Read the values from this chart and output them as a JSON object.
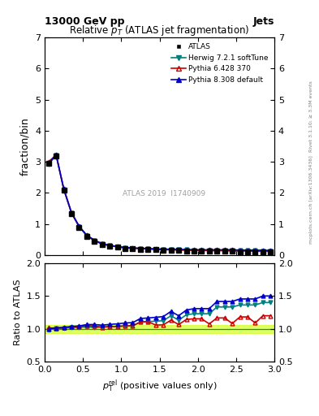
{
  "title": "Relative $p_T$ (ATLAS jet fragmentation)",
  "header_left": "13000 GeV pp",
  "header_right": "Jets",
  "ylabel_main": "fraction/bin",
  "ylabel_ratio": "Ratio to ATLAS",
  "watermark": "ATLAS 2019  I1740909",
  "right_label": "Rivet 3.1.10; ≥ 3.3M events",
  "right_label2": "mcplots.cern.ch [arXiv:1306.3436]",
  "x_data": [
    0.05,
    0.15,
    0.25,
    0.35,
    0.45,
    0.55,
    0.65,
    0.75,
    0.85,
    0.95,
    1.05,
    1.15,
    1.25,
    1.35,
    1.45,
    1.55,
    1.65,
    1.75,
    1.85,
    1.95,
    2.05,
    2.15,
    2.25,
    2.35,
    2.45,
    2.55,
    2.65,
    2.75,
    2.85,
    2.95
  ],
  "atlas_y": [
    2.95,
    3.18,
    2.08,
    1.32,
    0.89,
    0.6,
    0.45,
    0.35,
    0.29,
    0.26,
    0.22,
    0.21,
    0.19,
    0.18,
    0.17,
    0.16,
    0.15,
    0.15,
    0.14,
    0.13,
    0.13,
    0.13,
    0.12,
    0.12,
    0.12,
    0.11,
    0.11,
    0.11,
    0.1,
    0.1
  ],
  "herwig_y": [
    2.92,
    3.2,
    2.1,
    1.35,
    0.91,
    0.62,
    0.46,
    0.36,
    0.3,
    0.27,
    0.23,
    0.22,
    0.21,
    0.2,
    0.19,
    0.18,
    0.18,
    0.17,
    0.17,
    0.16,
    0.16,
    0.16,
    0.16,
    0.16,
    0.16,
    0.15,
    0.15,
    0.15,
    0.14,
    0.14
  ],
  "pythia6_y": [
    3.0,
    3.22,
    2.12,
    1.36,
    0.92,
    0.63,
    0.47,
    0.36,
    0.3,
    0.27,
    0.23,
    0.22,
    0.21,
    0.2,
    0.18,
    0.17,
    0.17,
    0.16,
    0.16,
    0.15,
    0.15,
    0.14,
    0.14,
    0.14,
    0.13,
    0.13,
    0.13,
    0.12,
    0.12,
    0.12
  ],
  "pythia8_y": [
    2.95,
    3.23,
    2.13,
    1.37,
    0.93,
    0.64,
    0.48,
    0.37,
    0.31,
    0.28,
    0.24,
    0.23,
    0.22,
    0.21,
    0.2,
    0.19,
    0.19,
    0.18,
    0.18,
    0.17,
    0.17,
    0.17,
    0.17,
    0.17,
    0.17,
    0.16,
    0.16,
    0.16,
    0.15,
    0.15
  ],
  "atlas_color": "black",
  "herwig_color": "#008080",
  "pythia6_color": "#cc0000",
  "pythia8_color": "#0000cc",
  "green_line_color": "#00aa00",
  "error_band_color": "#ccff00",
  "error_band_alpha": 0.6,
  "main_ylim": [
    0,
    7
  ],
  "ratio_ylim": [
    0.5,
    2.0
  ],
  "xlim": [
    0,
    3
  ],
  "main_yticks": [
    0,
    1,
    2,
    3,
    4,
    5,
    6,
    7
  ],
  "ratio_yticks": [
    0.5,
    1.0,
    1.5,
    2.0
  ]
}
